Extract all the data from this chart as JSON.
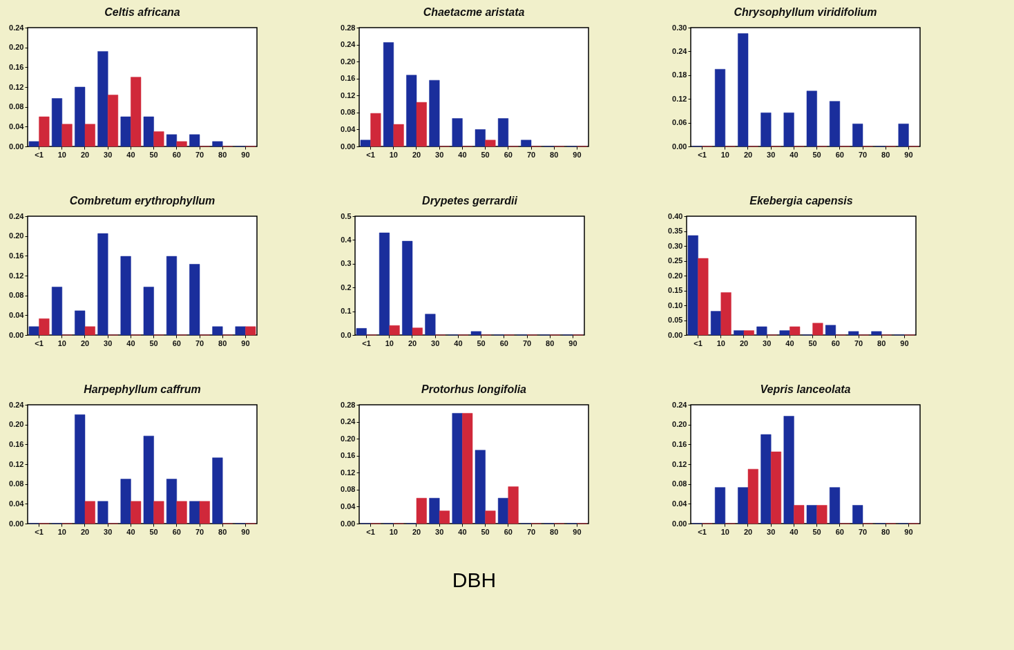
{
  "chart_data": [
    {
      "type": "bar",
      "title": "Celtis africana",
      "categories": [
        "<1",
        "10",
        "20",
        "30",
        "40",
        "50",
        "60",
        "70",
        "80",
        "90"
      ],
      "ylim": [
        0,
        0.24
      ],
      "yticks": [
        {
          "value": 0,
          "label": "0.00"
        },
        {
          "value": 0.04,
          "label": "0.04"
        },
        {
          "value": 0.08,
          "label": "0.08"
        },
        {
          "value": 0.12,
          "label": "0.12"
        },
        {
          "value": 0.16,
          "label": "0.16"
        },
        {
          "value": 0.2,
          "label": "0.20"
        },
        {
          "value": 0.24,
          "label": "0.24"
        }
      ],
      "series": [
        {
          "color": "#1a2e9c",
          "values": [
            0.01,
            0.097,
            0.12,
            0.192,
            0.06,
            0.06,
            0.024,
            0.024,
            0.01,
            0
          ]
        },
        {
          "color": "#d0283a",
          "values": [
            0.06,
            0.045,
            0.045,
            0.104,
            0.14,
            0.03,
            0.01,
            0,
            0,
            0
          ]
        }
      ]
    },
    {
      "type": "bar",
      "title": "Chaetacme aristata",
      "categories": [
        "<1",
        "10",
        "20",
        "30",
        "40",
        "50",
        "60",
        "70",
        "80",
        "90"
      ],
      "ylim": [
        0,
        0.28
      ],
      "yticks": [
        {
          "value": 0,
          "label": "0.00"
        },
        {
          "value": 0.04,
          "label": "0.04"
        },
        {
          "value": 0.08,
          "label": "0.08"
        },
        {
          "value": 0.12,
          "label": "0.12"
        },
        {
          "value": 0.16,
          "label": "0.16"
        },
        {
          "value": 0.2,
          "label": "0.20"
        },
        {
          "value": 0.24,
          "label": "0.24"
        },
        {
          "value": 0.28,
          "label": "0.28"
        }
      ],
      "series": [
        {
          "color": "#1a2e9c",
          "values": [
            0.015,
            0.245,
            0.168,
            0.156,
            0.066,
            0.04,
            0.066,
            0.015,
            0,
            0
          ]
        },
        {
          "color": "#d0283a",
          "values": [
            0.078,
            0.052,
            0.104,
            0,
            0,
            0.015,
            0,
            0,
            0,
            0
          ]
        }
      ]
    },
    {
      "type": "bar",
      "title": "Chrysophyllum viridifolium",
      "categories": [
        "<1",
        "10",
        "20",
        "30",
        "40",
        "50",
        "60",
        "70",
        "80",
        "90"
      ],
      "ylim": [
        0,
        0.3
      ],
      "yticks": [
        {
          "value": 0,
          "label": "0.00"
        },
        {
          "value": 0.06,
          "label": "0.06"
        },
        {
          "value": 0.12,
          "label": "0.12"
        },
        {
          "value": 0.18,
          "label": "0.18"
        },
        {
          "value": 0.24,
          "label": "0.24"
        },
        {
          "value": 0.3,
          "label": "0.30"
        }
      ],
      "series": [
        {
          "color": "#1a2e9c",
          "values": [
            0,
            0.195,
            0.285,
            0.085,
            0.085,
            0.14,
            0.114,
            0.057,
            0,
            0.057
          ]
        },
        {
          "color": "#d0283a",
          "values": [
            0,
            0,
            0,
            0,
            0,
            0,
            0,
            0,
            0,
            0
          ]
        }
      ]
    },
    {
      "type": "bar",
      "title": "Combretum erythrophyllum",
      "categories": [
        "<1",
        "10",
        "20",
        "30",
        "40",
        "50",
        "60",
        "70",
        "80",
        "90"
      ],
      "ylim": [
        0,
        0.24
      ],
      "yticks": [
        {
          "value": 0,
          "label": "0.00"
        },
        {
          "value": 0.04,
          "label": "0.04"
        },
        {
          "value": 0.08,
          "label": "0.08"
        },
        {
          "value": 0.12,
          "label": "0.12"
        },
        {
          "value": 0.16,
          "label": "0.16"
        },
        {
          "value": 0.2,
          "label": "0.20"
        },
        {
          "value": 0.24,
          "label": "0.24"
        }
      ],
      "series": [
        {
          "color": "#1a2e9c",
          "values": [
            0.017,
            0.097,
            0.049,
            0.205,
            0.159,
            0.097,
            0.159,
            0.143,
            0.017,
            0.017
          ]
        },
        {
          "color": "#d0283a",
          "values": [
            0.033,
            0,
            0.017,
            0,
            0,
            0,
            0,
            0,
            0,
            0.017
          ]
        }
      ]
    },
    {
      "type": "bar",
      "title": "Drypetes gerrardii",
      "categories": [
        "<1",
        "10",
        "20",
        "30",
        "40",
        "50",
        "60",
        "70",
        "80",
        "90"
      ],
      "ylim": [
        0,
        0.5
      ],
      "yticks": [
        {
          "value": 0,
          "label": "0.0"
        },
        {
          "value": 0.1,
          "label": "0.1"
        },
        {
          "value": 0.2,
          "label": "0.2"
        },
        {
          "value": 0.3,
          "label": "0.3"
        },
        {
          "value": 0.4,
          "label": "0.4"
        },
        {
          "value": 0.5,
          "label": "0.5"
        }
      ],
      "series": [
        {
          "color": "#1a2e9c",
          "values": [
            0.028,
            0.43,
            0.395,
            0.088,
            0,
            0.015,
            0,
            0,
            0,
            0
          ]
        },
        {
          "color": "#d0283a",
          "values": [
            0,
            0.04,
            0.03,
            0,
            0,
            0,
            0,
            0,
            0,
            0
          ]
        }
      ]
    },
    {
      "type": "bar",
      "title": "Ekebergia capensis",
      "categories": [
        "<1",
        "10",
        "20",
        "30",
        "40",
        "50",
        "60",
        "70",
        "80",
        "90"
      ],
      "ylim": [
        0,
        0.4
      ],
      "yticks": [
        {
          "value": 0,
          "label": "0.00"
        },
        {
          "value": 0.05,
          "label": "0.05"
        },
        {
          "value": 0.1,
          "label": "0.10"
        },
        {
          "value": 0.15,
          "label": "0.15"
        },
        {
          "value": 0.2,
          "label": "0.20"
        },
        {
          "value": 0.25,
          "label": "0.25"
        },
        {
          "value": 0.3,
          "label": "0.30"
        },
        {
          "value": 0.35,
          "label": "0.35"
        },
        {
          "value": 0.4,
          "label": "0.40"
        }
      ],
      "series": [
        {
          "color": "#1a2e9c",
          "values": [
            0.335,
            0.08,
            0.015,
            0.028,
            0.015,
            0,
            0.033,
            0.012,
            0.012,
            0
          ]
        },
        {
          "color": "#d0283a",
          "values": [
            0.258,
            0.143,
            0.015,
            0,
            0.028,
            0.04,
            0,
            0,
            0,
            0
          ]
        }
      ]
    },
    {
      "type": "bar",
      "title": "Harpephyllum caffrum",
      "categories": [
        "<1",
        "10",
        "20",
        "30",
        "40",
        "50",
        "60",
        "70",
        "80",
        "90"
      ],
      "ylim": [
        0,
        0.24
      ],
      "yticks": [
        {
          "value": 0,
          "label": "0.00"
        },
        {
          "value": 0.04,
          "label": "0.04"
        },
        {
          "value": 0.08,
          "label": "0.08"
        },
        {
          "value": 0.12,
          "label": "0.12"
        },
        {
          "value": 0.16,
          "label": "0.16"
        },
        {
          "value": 0.2,
          "label": "0.20"
        },
        {
          "value": 0.24,
          "label": "0.24"
        }
      ],
      "series": [
        {
          "color": "#1a2e9c",
          "values": [
            0,
            0,
            0.22,
            0.045,
            0.09,
            0.177,
            0.09,
            0.045,
            0.133,
            0
          ]
        },
        {
          "color": "#d0283a",
          "values": [
            0,
            0,
            0.045,
            0,
            0.045,
            0.045,
            0.045,
            0.045,
            0,
            0
          ]
        }
      ]
    },
    {
      "type": "bar",
      "title": "Protorhus longifolia",
      "xlabel": "DBH",
      "categories": [
        "<1",
        "10",
        "20",
        "30",
        "40",
        "50",
        "60",
        "70",
        "80",
        "90"
      ],
      "ylim": [
        0,
        0.28
      ],
      "yticks": [
        {
          "value": 0,
          "label": "0.00"
        },
        {
          "value": 0.04,
          "label": "0.04"
        },
        {
          "value": 0.08,
          "label": "0.08"
        },
        {
          "value": 0.12,
          "label": "0.12"
        },
        {
          "value": 0.16,
          "label": "0.16"
        },
        {
          "value": 0.2,
          "label": "0.20"
        },
        {
          "value": 0.24,
          "label": "0.24"
        },
        {
          "value": 0.28,
          "label": "0.28"
        }
      ],
      "series": [
        {
          "color": "#1a2e9c",
          "values": [
            0,
            0,
            0,
            0.06,
            0.26,
            0.173,
            0.06,
            0,
            0,
            0
          ]
        },
        {
          "color": "#d0283a",
          "values": [
            0,
            0,
            0.06,
            0.03,
            0.26,
            0.03,
            0.087,
            0,
            0,
            0
          ]
        }
      ]
    },
    {
      "type": "bar",
      "title": "Vepris lanceolata",
      "categories": [
        "<1",
        "10",
        "20",
        "30",
        "40",
        "50",
        "60",
        "70",
        "80",
        "90"
      ],
      "ylim": [
        0,
        0.24
      ],
      "yticks": [
        {
          "value": 0,
          "label": "0.00"
        },
        {
          "value": 0.04,
          "label": "0.04"
        },
        {
          "value": 0.08,
          "label": "0.08"
        },
        {
          "value": 0.12,
          "label": "0.12"
        },
        {
          "value": 0.16,
          "label": "0.16"
        },
        {
          "value": 0.2,
          "label": "0.20"
        },
        {
          "value": 0.24,
          "label": "0.24"
        }
      ],
      "series": [
        {
          "color": "#1a2e9c",
          "values": [
            0,
            0.073,
            0.073,
            0.18,
            0.217,
            0.037,
            0.073,
            0.037,
            0,
            0
          ]
        },
        {
          "color": "#d0283a",
          "values": [
            0,
            0,
            0.11,
            0.145,
            0.037,
            0.037,
            0,
            0,
            0,
            0
          ]
        }
      ]
    }
  ]
}
